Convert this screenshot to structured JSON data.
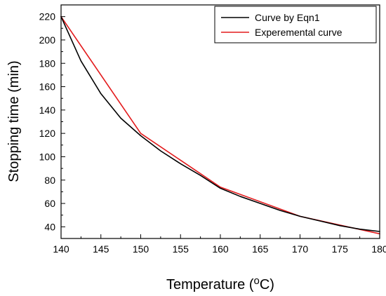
{
  "chart_data": {
    "type": "line",
    "title": "",
    "xlabel": "Temperature (",
    "xlabel_sup": "o",
    "xlabel_suffix": "C)",
    "ylabel": "Stopping time (min)",
    "xlim": [
      140,
      180
    ],
    "ylim": [
      30,
      230
    ],
    "xticks": [
      140,
      145,
      150,
      155,
      160,
      165,
      170,
      175,
      180
    ],
    "yticks": [
      40,
      60,
      80,
      100,
      120,
      140,
      160,
      180,
      200,
      220
    ],
    "grid": false,
    "legend_position": "top-right",
    "series": [
      {
        "name": "Curve by Eqn1",
        "color": "#000000",
        "x": [
          140,
          142.5,
          145,
          147.5,
          150,
          152.5,
          155,
          157.5,
          160,
          162.5,
          165,
          167.5,
          170,
          172.5,
          175,
          177.5,
          180
        ],
        "y": [
          220,
          182,
          154,
          133,
          118,
          105,
          94,
          84,
          73,
          66,
          60,
          54,
          49,
          45,
          41,
          38,
          36
        ]
      },
      {
        "name": "Experemental curve",
        "color": "#e31a1c",
        "x": [
          140,
          150,
          160,
          170,
          180
        ],
        "y": [
          220,
          120,
          74,
          49,
          34
        ]
      }
    ]
  }
}
